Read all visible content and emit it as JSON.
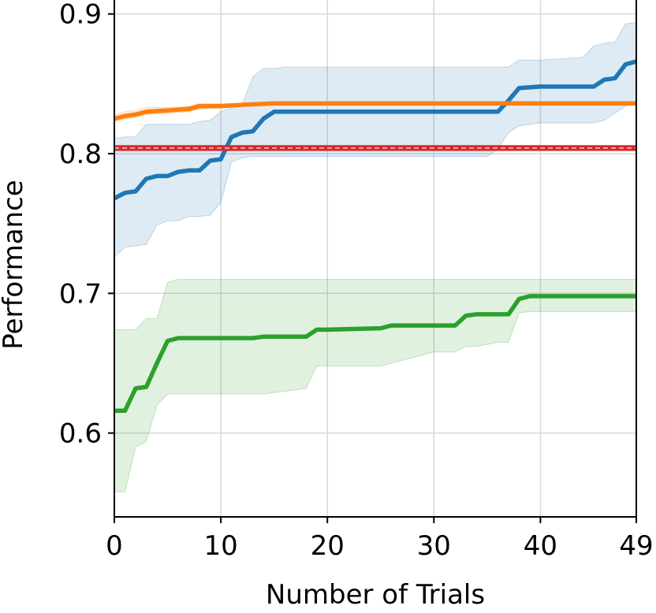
{
  "chart_data": {
    "type": "line",
    "title": "",
    "xlabel": "Number of Trials",
    "ylabel": "Performance",
    "xlim": [
      0,
      49
    ],
    "ylim": [
      0.54,
      0.91
    ],
    "xticks": [
      0,
      10,
      20,
      30,
      40,
      49
    ],
    "xtick_labels": [
      "0",
      "10",
      "20",
      "30",
      "40",
      "49"
    ],
    "yticks": [
      0.6,
      0.7,
      0.8,
      0.9
    ],
    "ytick_labels": [
      "0.6",
      "0.7",
      "0.8",
      "0.9"
    ],
    "grid": true,
    "legend": "none",
    "series": [
      {
        "name": "blue",
        "color": "#1f77b4",
        "x": [
          0,
          1,
          2,
          3,
          4,
          5,
          6,
          7,
          8,
          9,
          10,
          11,
          12,
          13,
          14,
          15,
          16,
          20,
          25,
          30,
          35,
          36,
          37,
          38,
          40,
          42,
          44,
          45,
          46,
          47,
          48,
          49
        ],
        "values": [
          0.768,
          0.772,
          0.773,
          0.782,
          0.784,
          0.784,
          0.787,
          0.788,
          0.788,
          0.795,
          0.796,
          0.812,
          0.815,
          0.816,
          0.825,
          0.83,
          0.83,
          0.83,
          0.83,
          0.83,
          0.83,
          0.83,
          0.838,
          0.847,
          0.848,
          0.848,
          0.848,
          0.848,
          0.853,
          0.854,
          0.864,
          0.866
        ],
        "lower": [
          0.726,
          0.733,
          0.734,
          0.735,
          0.749,
          0.752,
          0.752,
          0.755,
          0.755,
          0.756,
          0.765,
          0.794,
          0.797,
          0.798,
          0.798,
          0.798,
          0.798,
          0.798,
          0.798,
          0.798,
          0.798,
          0.803,
          0.815,
          0.82,
          0.822,
          0.822,
          0.822,
          0.822,
          0.824,
          0.829,
          0.834,
          0.838
        ],
        "upper": [
          0.811,
          0.812,
          0.812,
          0.821,
          0.821,
          0.821,
          0.821,
          0.821,
          0.823,
          0.824,
          0.83,
          0.833,
          0.835,
          0.855,
          0.861,
          0.861,
          0.862,
          0.862,
          0.862,
          0.862,
          0.862,
          0.862,
          0.862,
          0.867,
          0.867,
          0.868,
          0.869,
          0.877,
          0.879,
          0.88,
          0.893,
          0.894
        ]
      },
      {
        "name": "orange",
        "color": "#ff7f0e",
        "x": [
          0,
          1,
          2,
          3,
          5,
          7,
          8,
          10,
          12,
          15,
          20,
          25,
          30,
          35,
          40,
          45,
          49
        ],
        "values": [
          0.825,
          0.827,
          0.828,
          0.83,
          0.831,
          0.832,
          0.834,
          0.834,
          0.835,
          0.836,
          0.836,
          0.836,
          0.836,
          0.836,
          0.836,
          0.836,
          0.836
        ],
        "lower": [
          0.823,
          0.825,
          0.826,
          0.828,
          0.829,
          0.83,
          0.832,
          0.833,
          0.834,
          0.835,
          0.835,
          0.835,
          0.835,
          0.835,
          0.835,
          0.835,
          0.835
        ],
        "upper": [
          0.828,
          0.83,
          0.831,
          0.833,
          0.833,
          0.834,
          0.836,
          0.836,
          0.836,
          0.837,
          0.837,
          0.837,
          0.837,
          0.837,
          0.837,
          0.837,
          0.837
        ]
      },
      {
        "name": "red",
        "color": "#d62728",
        "x": [
          0,
          49
        ],
        "values": [
          0.804,
          0.804
        ],
        "lower": [
          0.802,
          0.802
        ],
        "upper": [
          0.806,
          0.806
        ]
      },
      {
        "name": "green",
        "color": "#2ca02c",
        "x": [
          0,
          1,
          2,
          3,
          4,
          5,
          6,
          10,
          13,
          14,
          18,
          19,
          20,
          25,
          26,
          30,
          32,
          33,
          34,
          36,
          37,
          38,
          39,
          40,
          45,
          49
        ],
        "values": [
          0.616,
          0.616,
          0.632,
          0.633,
          0.65,
          0.666,
          0.668,
          0.668,
          0.668,
          0.669,
          0.669,
          0.674,
          0.674,
          0.675,
          0.677,
          0.677,
          0.677,
          0.684,
          0.685,
          0.685,
          0.685,
          0.696,
          0.698,
          0.698,
          0.698,
          0.698
        ],
        "lower": [
          0.558,
          0.558,
          0.59,
          0.594,
          0.62,
          0.628,
          0.628,
          0.628,
          0.628,
          0.628,
          0.632,
          0.648,
          0.648,
          0.648,
          0.65,
          0.658,
          0.658,
          0.662,
          0.662,
          0.665,
          0.665,
          0.686,
          0.687,
          0.687,
          0.687,
          0.687
        ],
        "upper": [
          0.674,
          0.674,
          0.674,
          0.682,
          0.682,
          0.708,
          0.71,
          0.71,
          0.71,
          0.71,
          0.71,
          0.71,
          0.71,
          0.71,
          0.71,
          0.71,
          0.71,
          0.71,
          0.71,
          0.71,
          0.71,
          0.71,
          0.71,
          0.71,
          0.71,
          0.71
        ]
      }
    ]
  }
}
